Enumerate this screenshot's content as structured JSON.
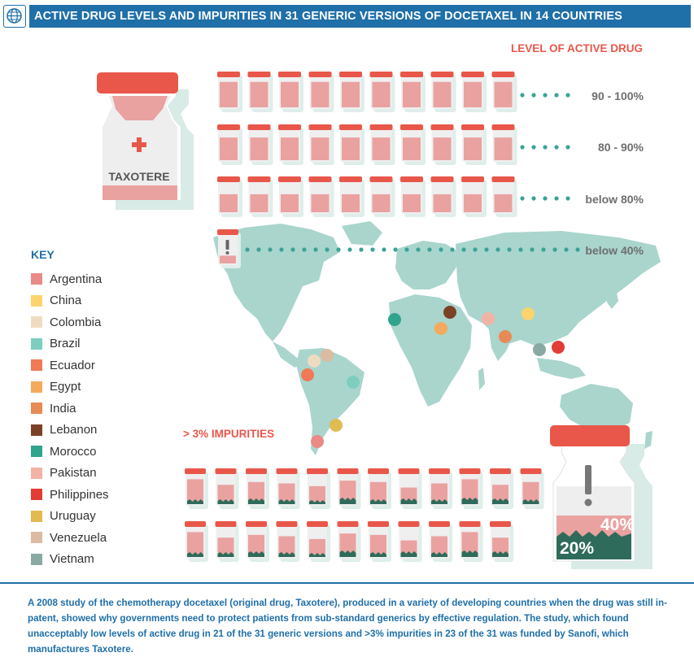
{
  "title": "ACTIVE DRUG LEVELS AND IMPURITIES IN 31 GENERIC VERSIONS OF DOCETAXEL IN 14 COUNTRIES",
  "header_icon": "globe-icon",
  "original_drug": {
    "label": "TAXOTERE",
    "icon": "red-cross-icon"
  },
  "level_section": {
    "title": "LEVEL OF ACTIVE DRUG",
    "levels": [
      {
        "label": "90 - 100%",
        "count": 10
      },
      {
        "label": "80 - 90%",
        "count": 10
      },
      {
        "label": "below 80%",
        "count": 10
      },
      {
        "label": "below 40%",
        "count": 1
      }
    ]
  },
  "key": {
    "title": "KEY",
    "items": [
      {
        "label": "Argentina",
        "color": "#e98a86"
      },
      {
        "label": "China",
        "color": "#fbd46d"
      },
      {
        "label": "Colombia",
        "color": "#efdcc0"
      },
      {
        "label": "Brazil",
        "color": "#7ecec0"
      },
      {
        "label": "Ecuador",
        "color": "#ef7a55"
      },
      {
        "label": "Egypt",
        "color": "#f5a95c"
      },
      {
        "label": "India",
        "color": "#e88a56"
      },
      {
        "label": "Lebanon",
        "color": "#7b4127"
      },
      {
        "label": "Morocco",
        "color": "#30a48c"
      },
      {
        "label": "Pakistan",
        "color": "#f2b3a5"
      },
      {
        "label": "Philippines",
        "color": "#e23c34"
      },
      {
        "label": "Uruguay",
        "color": "#e0bb4f"
      },
      {
        "label": "Venezuela",
        "color": "#dbbba1"
      },
      {
        "label": "Vietnam",
        "color": "#8aa9a2"
      }
    ]
  },
  "impurities": {
    "title": "> 3% IMPURITIES",
    "count": 23,
    "big_vial": {
      "label_top": "40%",
      "label_bottom": "20%",
      "icon": "exclamation-icon"
    }
  },
  "footer": "A 2008 study of the chemotherapy docetaxel (original drug, Taxotere), produced in a variety of developing countries when the drug was still in-patent, showed why governments need to protect patients from sub-standard generics by effective regulation. The study, which found unacceptably low levels of active drug in 21 of the 31 generic versions and >3% impurities in 23 of the 31 was funded by Sanofi, which manufactures Taxotere.",
  "chart_data": {
    "type": "pictogram",
    "title": "ACTIVE DRUG LEVELS AND IMPURITIES IN 31 GENERIC VERSIONS OF DOCETAXEL IN 14 COUNTRIES",
    "active_drug_level": {
      "categories": [
        "90 - 100%",
        "80 - 90%",
        "below 80%",
        "below 40%"
      ],
      "values": [
        10,
        10,
        10,
        1
      ]
    },
    "impurities_over_3pct": 23,
    "total_generic_versions": 31,
    "countries": 14
  },
  "colors": {
    "accent_blue": "#1f6fa8",
    "accent_red": "#e8574a",
    "vial_pink": "#e9a2a0",
    "map_teal": "#a9d5cd",
    "dots_teal": "#3aa396"
  }
}
